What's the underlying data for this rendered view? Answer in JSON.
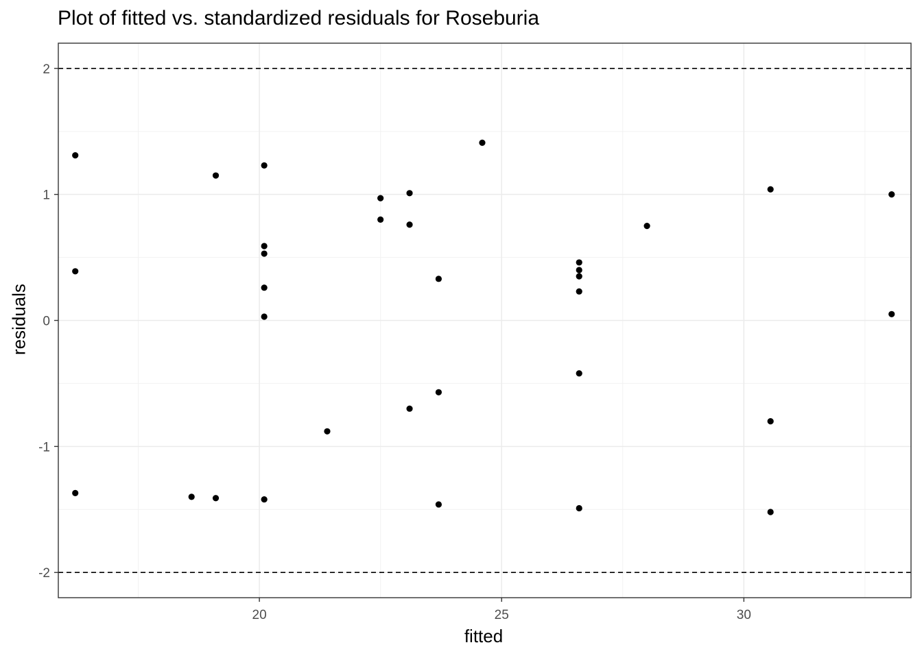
{
  "chart_data": {
    "type": "scatter",
    "title": "Plot of fitted vs. standardized residuals for Roseburia",
    "xlabel": "fitted",
    "ylabel": "residuals",
    "xlim": [
      15.85,
      33.45
    ],
    "ylim": [
      -2.2,
      2.2
    ],
    "x_ticks": [
      20,
      25,
      30
    ],
    "x_tick_labels": [
      "20",
      "25",
      "30"
    ],
    "y_ticks": [
      -2,
      -1,
      0,
      1,
      2
    ],
    "y_tick_labels": [
      "-2",
      "-1",
      "0",
      "1",
      "2"
    ],
    "x_minor_ticks": [
      17.5,
      22.5,
      27.5,
      32.5
    ],
    "y_minor_ticks": [
      -1.5,
      -0.5,
      0.5,
      1.5
    ],
    "reference_lines": [
      2,
      -2
    ],
    "grid": true,
    "point_color": "#000000",
    "points": [
      {
        "x": 16.2,
        "y": 1.31
      },
      {
        "x": 16.2,
        "y": 0.39
      },
      {
        "x": 16.2,
        "y": -1.37
      },
      {
        "x": 18.6,
        "y": -1.4
      },
      {
        "x": 19.1,
        "y": 1.15
      },
      {
        "x": 19.1,
        "y": -1.41
      },
      {
        "x": 20.1,
        "y": 1.23
      },
      {
        "x": 20.1,
        "y": 0.59
      },
      {
        "x": 20.1,
        "y": 0.53
      },
      {
        "x": 20.1,
        "y": 0.26
      },
      {
        "x": 20.1,
        "y": 0.03
      },
      {
        "x": 20.1,
        "y": -1.42
      },
      {
        "x": 21.4,
        "y": -0.88
      },
      {
        "x": 22.5,
        "y": 0.97
      },
      {
        "x": 22.5,
        "y": 0.8
      },
      {
        "x": 23.1,
        "y": 1.01
      },
      {
        "x": 23.1,
        "y": 0.76
      },
      {
        "x": 23.1,
        "y": -0.7
      },
      {
        "x": 23.7,
        "y": 0.33
      },
      {
        "x": 23.7,
        "y": -0.57
      },
      {
        "x": 23.7,
        "y": -1.46
      },
      {
        "x": 24.6,
        "y": 1.41
      },
      {
        "x": 26.6,
        "y": 0.46
      },
      {
        "x": 26.6,
        "y": 0.4
      },
      {
        "x": 26.6,
        "y": 0.35
      },
      {
        "x": 26.6,
        "y": 0.23
      },
      {
        "x": 26.6,
        "y": -0.42
      },
      {
        "x": 26.6,
        "y": -1.49
      },
      {
        "x": 28.0,
        "y": 0.75
      },
      {
        "x": 30.55,
        "y": 1.04
      },
      {
        "x": 30.55,
        "y": -0.8
      },
      {
        "x": 30.55,
        "y": -1.52
      },
      {
        "x": 33.05,
        "y": 1.0
      },
      {
        "x": 33.05,
        "y": 0.05
      }
    ]
  }
}
